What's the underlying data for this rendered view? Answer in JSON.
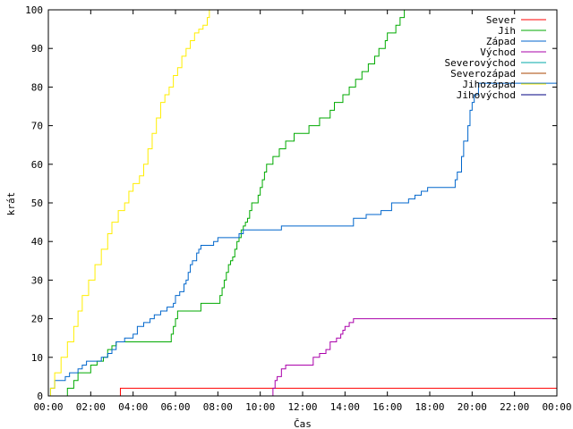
{
  "chart_data": {
    "type": "line",
    "title": "",
    "xlabel": "Čas",
    "ylabel": "krát",
    "xlim": [
      0,
      24
    ],
    "ylim": [
      0,
      100
    ],
    "x_ticks": [
      {
        "v": 0,
        "label": "00:00"
      },
      {
        "v": 2,
        "label": "02:00"
      },
      {
        "v": 4,
        "label": "04:00"
      },
      {
        "v": 6,
        "label": "06:00"
      },
      {
        "v": 8,
        "label": "08:00"
      },
      {
        "v": 10,
        "label": "10:00"
      },
      {
        "v": 12,
        "label": "12:00"
      },
      {
        "v": 14,
        "label": "14:00"
      },
      {
        "v": 16,
        "label": "16:00"
      },
      {
        "v": 18,
        "label": "18:00"
      },
      {
        "v": 20,
        "label": "20:00"
      },
      {
        "v": 22,
        "label": "22:00"
      },
      {
        "v": 24,
        "label": "00:00"
      }
    ],
    "y_ticks": [
      0,
      10,
      20,
      30,
      40,
      50,
      60,
      70,
      80,
      90,
      100
    ],
    "grid": false,
    "legend_position": "top-right",
    "series": [
      {
        "name": "Sever",
        "color": "#ff0000",
        "points": [
          [
            0,
            0
          ],
          [
            3.4,
            0
          ],
          [
            3.4,
            2
          ],
          [
            24,
            2
          ]
        ]
      },
      {
        "name": "Jih",
        "color": "#00aa00",
        "points": [
          [
            0,
            0
          ],
          [
            0.8,
            0
          ],
          [
            0.9,
            2
          ],
          [
            1.2,
            4
          ],
          [
            1.4,
            6
          ],
          [
            1.8,
            6
          ],
          [
            2.0,
            8
          ],
          [
            2.3,
            9
          ],
          [
            2.6,
            10
          ],
          [
            2.8,
            12
          ],
          [
            3.0,
            13
          ],
          [
            3.2,
            14
          ],
          [
            4.5,
            14
          ],
          [
            5.2,
            14
          ],
          [
            5.6,
            14
          ],
          [
            5.8,
            16
          ],
          [
            5.9,
            18
          ],
          [
            6.0,
            20
          ],
          [
            6.1,
            22
          ],
          [
            6.5,
            22
          ],
          [
            7.0,
            22
          ],
          [
            7.2,
            24
          ],
          [
            7.6,
            24
          ],
          [
            8.0,
            24
          ],
          [
            8.1,
            26
          ],
          [
            8.2,
            28
          ],
          [
            8.3,
            30
          ],
          [
            8.4,
            32
          ],
          [
            8.5,
            34
          ],
          [
            8.6,
            35
          ],
          [
            8.7,
            36
          ],
          [
            8.8,
            38
          ],
          [
            8.9,
            40
          ],
          [
            9.0,
            41
          ],
          [
            9.1,
            43
          ],
          [
            9.2,
            44
          ],
          [
            9.3,
            45
          ],
          [
            9.4,
            46
          ],
          [
            9.5,
            48
          ],
          [
            9.6,
            50
          ],
          [
            9.8,
            50
          ],
          [
            9.9,
            52
          ],
          [
            10.0,
            54
          ],
          [
            10.1,
            56
          ],
          [
            10.2,
            58
          ],
          [
            10.3,
            60
          ],
          [
            10.5,
            60
          ],
          [
            10.6,
            62
          ],
          [
            10.8,
            62
          ],
          [
            10.9,
            64
          ],
          [
            11.0,
            64
          ],
          [
            11.2,
            66
          ],
          [
            11.5,
            66
          ],
          [
            11.6,
            68
          ],
          [
            11.8,
            68
          ],
          [
            12.2,
            68
          ],
          [
            12.3,
            70
          ],
          [
            12.5,
            70
          ],
          [
            12.8,
            72
          ],
          [
            13.2,
            72
          ],
          [
            13.3,
            74
          ],
          [
            13.5,
            76
          ],
          [
            13.8,
            76
          ],
          [
            13.9,
            78
          ],
          [
            14.2,
            80
          ],
          [
            14.5,
            82
          ],
          [
            14.8,
            84
          ],
          [
            15.1,
            86
          ],
          [
            15.4,
            88
          ],
          [
            15.6,
            90
          ],
          [
            15.9,
            92
          ],
          [
            16.0,
            94
          ],
          [
            16.3,
            94
          ],
          [
            16.4,
            96
          ],
          [
            16.6,
            98
          ],
          [
            16.8,
            100
          ]
        ]
      },
      {
        "name": "Západ",
        "color": "#0066cc",
        "points": [
          [
            0,
            0
          ],
          [
            0.1,
            2
          ],
          [
            0.3,
            4
          ],
          [
            0.7,
            4
          ],
          [
            0.8,
            5
          ],
          [
            1.0,
            6
          ],
          [
            1.3,
            6
          ],
          [
            1.4,
            7
          ],
          [
            1.6,
            8
          ],
          [
            1.8,
            9
          ],
          [
            2.4,
            9
          ],
          [
            2.5,
            10
          ],
          [
            2.8,
            11
          ],
          [
            3.0,
            12
          ],
          [
            3.2,
            14
          ],
          [
            3.6,
            15
          ],
          [
            4.0,
            16
          ],
          [
            4.2,
            18
          ],
          [
            4.5,
            19
          ],
          [
            4.8,
            20
          ],
          [
            5.0,
            21
          ],
          [
            5.3,
            22
          ],
          [
            5.6,
            23
          ],
          [
            5.9,
            24
          ],
          [
            6.0,
            26
          ],
          [
            6.2,
            27
          ],
          [
            6.4,
            29
          ],
          [
            6.5,
            30
          ],
          [
            6.6,
            32
          ],
          [
            6.7,
            34
          ],
          [
            6.8,
            35
          ],
          [
            7.0,
            37
          ],
          [
            7.1,
            38
          ],
          [
            7.2,
            39
          ],
          [
            7.6,
            39
          ],
          [
            7.8,
            40
          ],
          [
            8.0,
            41
          ],
          [
            8.3,
            41
          ],
          [
            8.6,
            41
          ],
          [
            9.0,
            42
          ],
          [
            9.2,
            43
          ],
          [
            11.0,
            44
          ],
          [
            13.0,
            44
          ],
          [
            14.4,
            46
          ],
          [
            15.0,
            47
          ],
          [
            15.7,
            48
          ],
          [
            16.2,
            50
          ],
          [
            17.0,
            51
          ],
          [
            17.3,
            52
          ],
          [
            17.6,
            53
          ],
          [
            17.9,
            54
          ],
          [
            18.5,
            54
          ],
          [
            19.1,
            54
          ],
          [
            19.2,
            56
          ],
          [
            19.3,
            58
          ],
          [
            19.5,
            62
          ],
          [
            19.6,
            66
          ],
          [
            19.8,
            70
          ],
          [
            19.9,
            74
          ],
          [
            20.0,
            76
          ],
          [
            20.1,
            78
          ],
          [
            20.3,
            81
          ],
          [
            24,
            81
          ]
        ]
      },
      {
        "name": "Východ",
        "color": "#aa00aa",
        "points": [
          [
            0,
            0
          ],
          [
            10.5,
            0
          ],
          [
            10.6,
            2
          ],
          [
            10.7,
            4
          ],
          [
            10.8,
            5
          ],
          [
            11.0,
            7
          ],
          [
            11.2,
            8
          ],
          [
            12.2,
            8
          ],
          [
            12.5,
            10
          ],
          [
            12.8,
            11
          ],
          [
            13.1,
            12
          ],
          [
            13.3,
            14
          ],
          [
            13.6,
            15
          ],
          [
            13.8,
            16
          ],
          [
            13.9,
            17
          ],
          [
            14.0,
            18
          ],
          [
            14.2,
            19
          ],
          [
            14.4,
            20
          ],
          [
            24,
            20
          ]
        ]
      },
      {
        "name": "Severovýchod",
        "color": "#00aaaa",
        "points": []
      },
      {
        "name": "Severozápad",
        "color": "#aa4400",
        "points": []
      },
      {
        "name": "Jihozápad",
        "color": "#ffee00",
        "points": [
          [
            0,
            0
          ],
          [
            0.1,
            2
          ],
          [
            0.3,
            6
          ],
          [
            0.6,
            10
          ],
          [
            0.9,
            14
          ],
          [
            1.2,
            18
          ],
          [
            1.4,
            22
          ],
          [
            1.6,
            26
          ],
          [
            1.9,
            30
          ],
          [
            2.2,
            34
          ],
          [
            2.5,
            38
          ],
          [
            2.8,
            42
          ],
          [
            3.0,
            45
          ],
          [
            3.3,
            48
          ],
          [
            3.6,
            50
          ],
          [
            3.8,
            53
          ],
          [
            4.0,
            55
          ],
          [
            4.3,
            57
          ],
          [
            4.5,
            60
          ],
          [
            4.7,
            64
          ],
          [
            4.9,
            68
          ],
          [
            5.1,
            72
          ],
          [
            5.3,
            76
          ],
          [
            5.5,
            78
          ],
          [
            5.7,
            80
          ],
          [
            5.9,
            83
          ],
          [
            6.1,
            85
          ],
          [
            6.3,
            88
          ],
          [
            6.5,
            90
          ],
          [
            6.7,
            92
          ],
          [
            6.9,
            94
          ],
          [
            7.1,
            95
          ],
          [
            7.3,
            96
          ],
          [
            7.5,
            98
          ],
          [
            7.6,
            100
          ]
        ]
      },
      {
        "name": "Jihovýchod",
        "color": "#000080",
        "points": []
      }
    ]
  }
}
